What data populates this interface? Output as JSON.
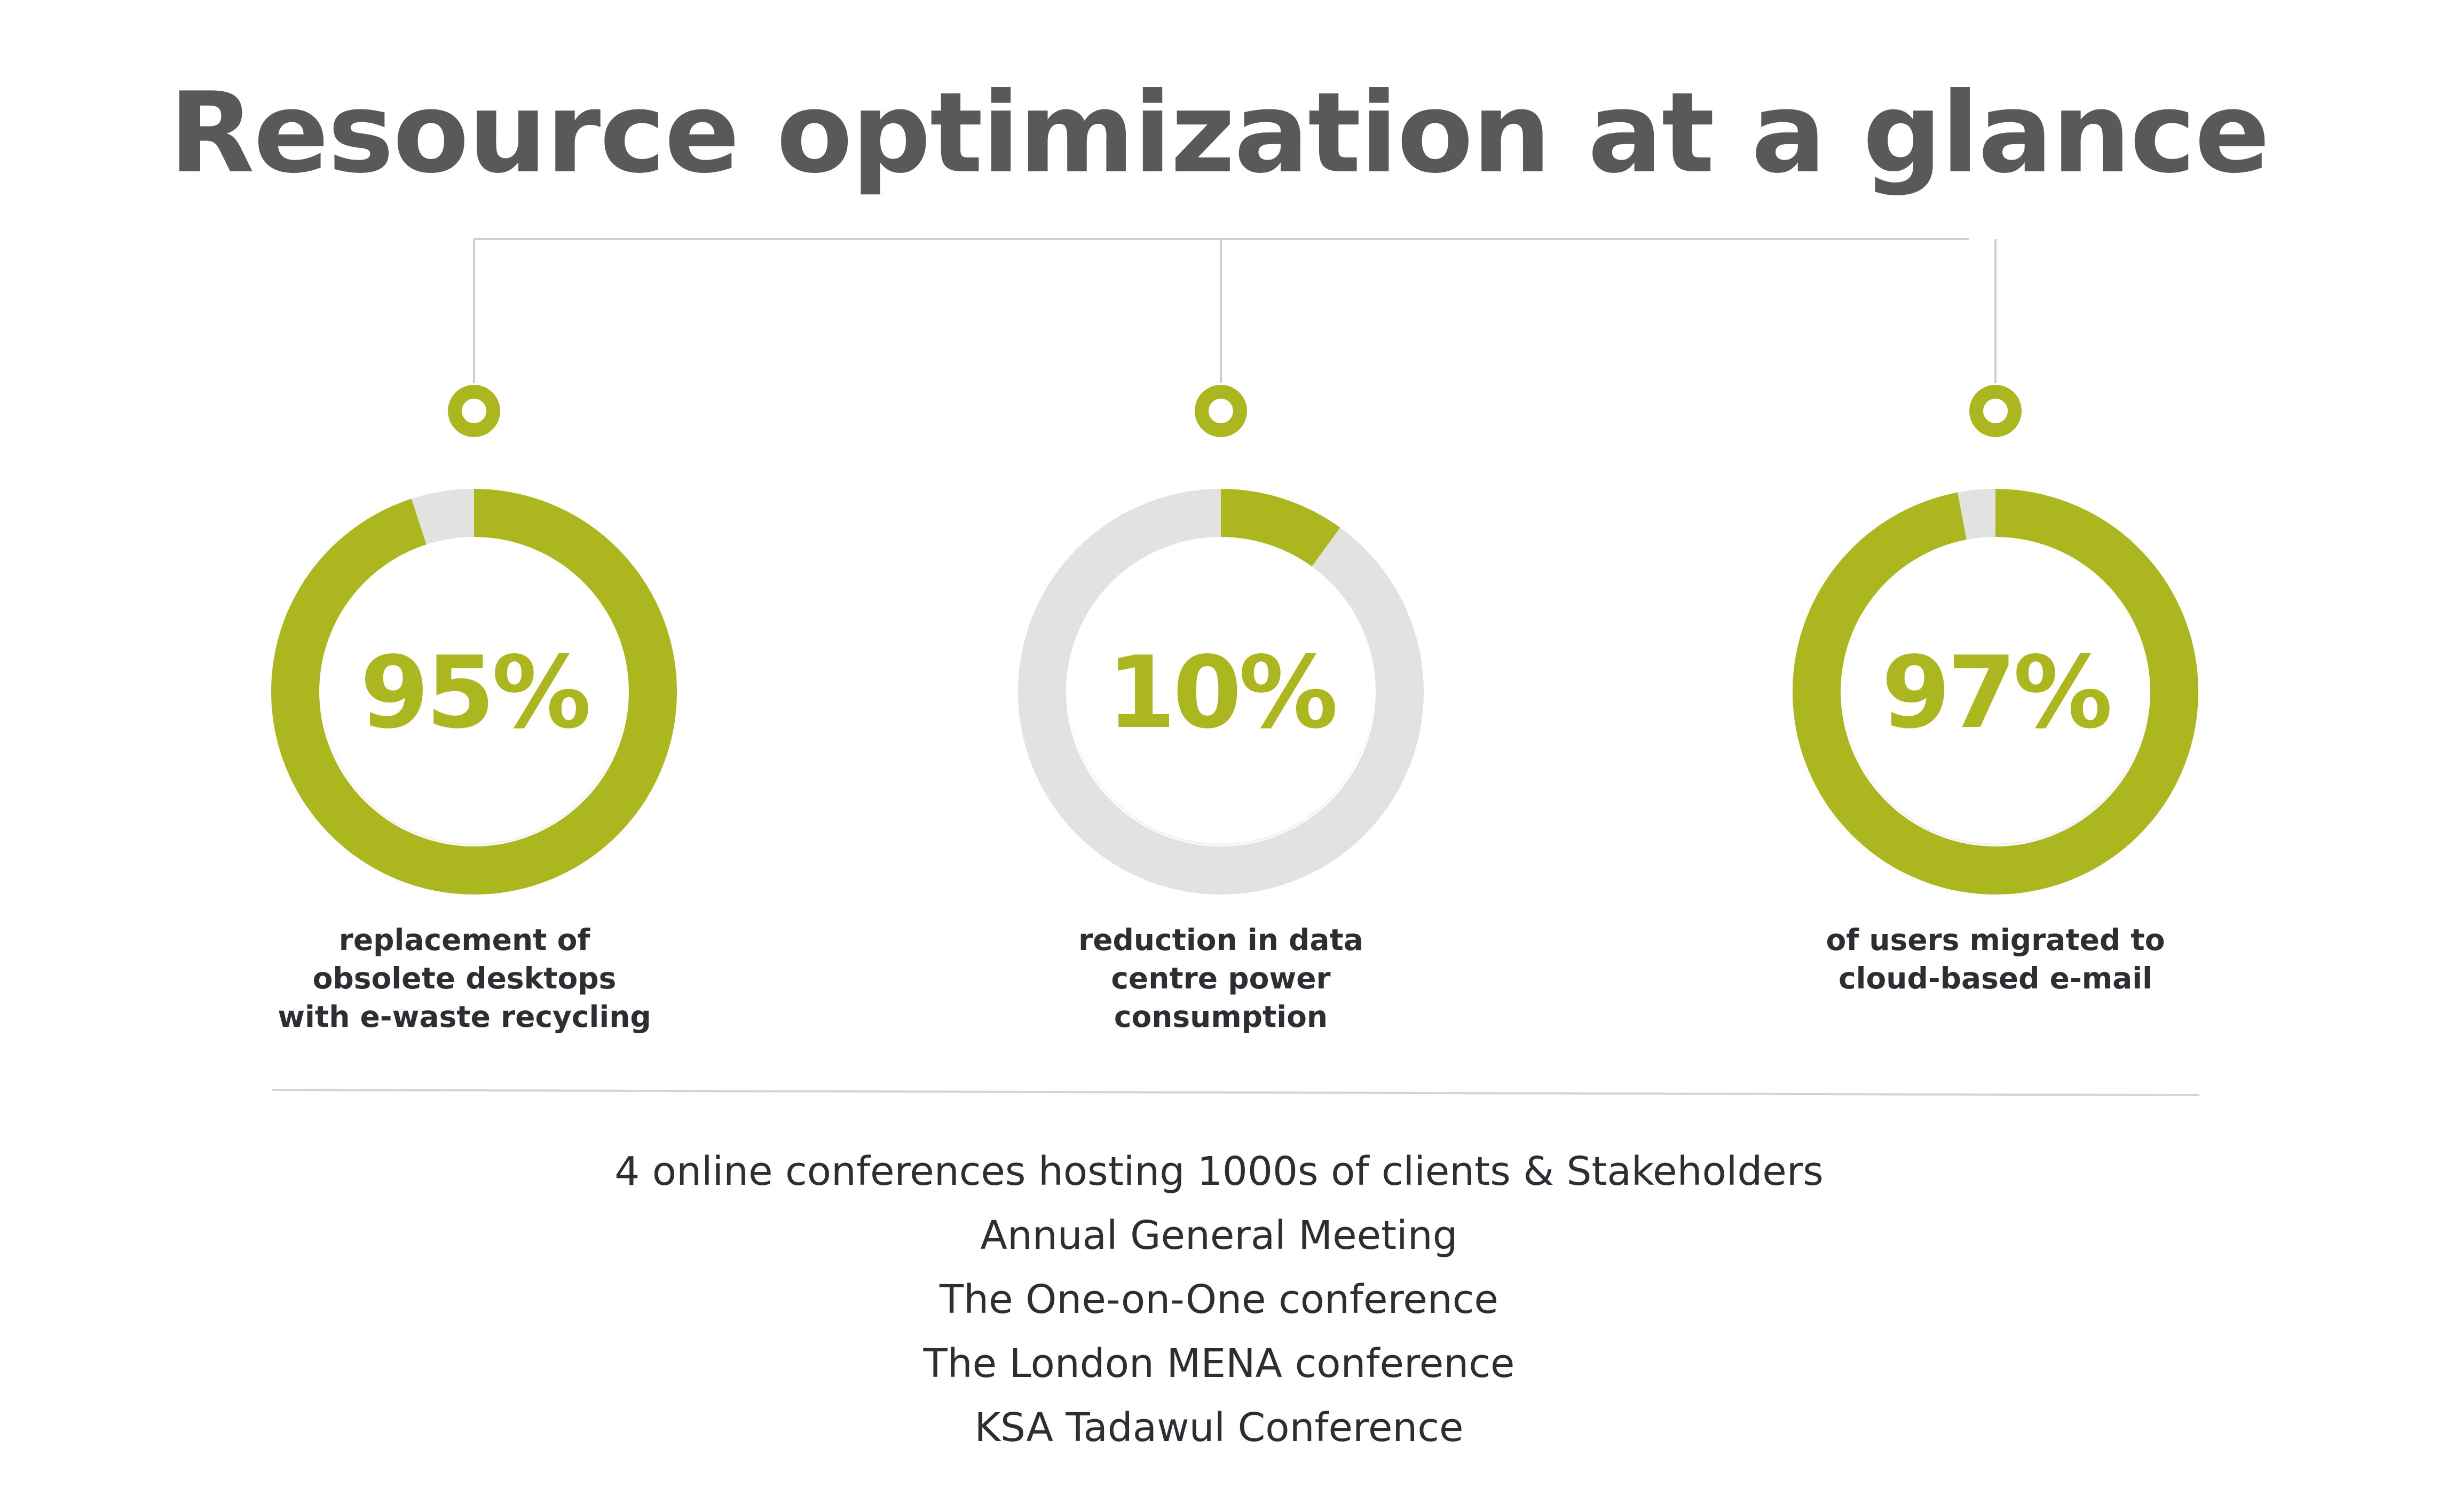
{
  "title": "Resource optimization at a glance",
  "colors": {
    "accent": "#acb61f",
    "track": "#e2e2e1",
    "title": "#58595b",
    "text": "#2d2d33",
    "connector": "#cfcfcf"
  },
  "chart_data": [
    {
      "type": "pie",
      "value": 95,
      "label": "95%",
      "description": "replacement of\nobsolete desktops\nwith e-waste recycling"
    },
    {
      "type": "pie",
      "value": 10,
      "label": "10%",
      "description": "reduction in data\ncentre power\nconsumption"
    },
    {
      "type": "pie",
      "value": 97,
      "label": "97%",
      "description": "of users migrated to\ncloud-based e-mail"
    }
  ],
  "events": {
    "headline": "4 online conferences hosting 1000s of clients & Stakeholders",
    "items": [
      "Annual General Meeting",
      "The One-on-One conference",
      "The London MENA conference",
      "KSA Tadawul Conference"
    ]
  }
}
